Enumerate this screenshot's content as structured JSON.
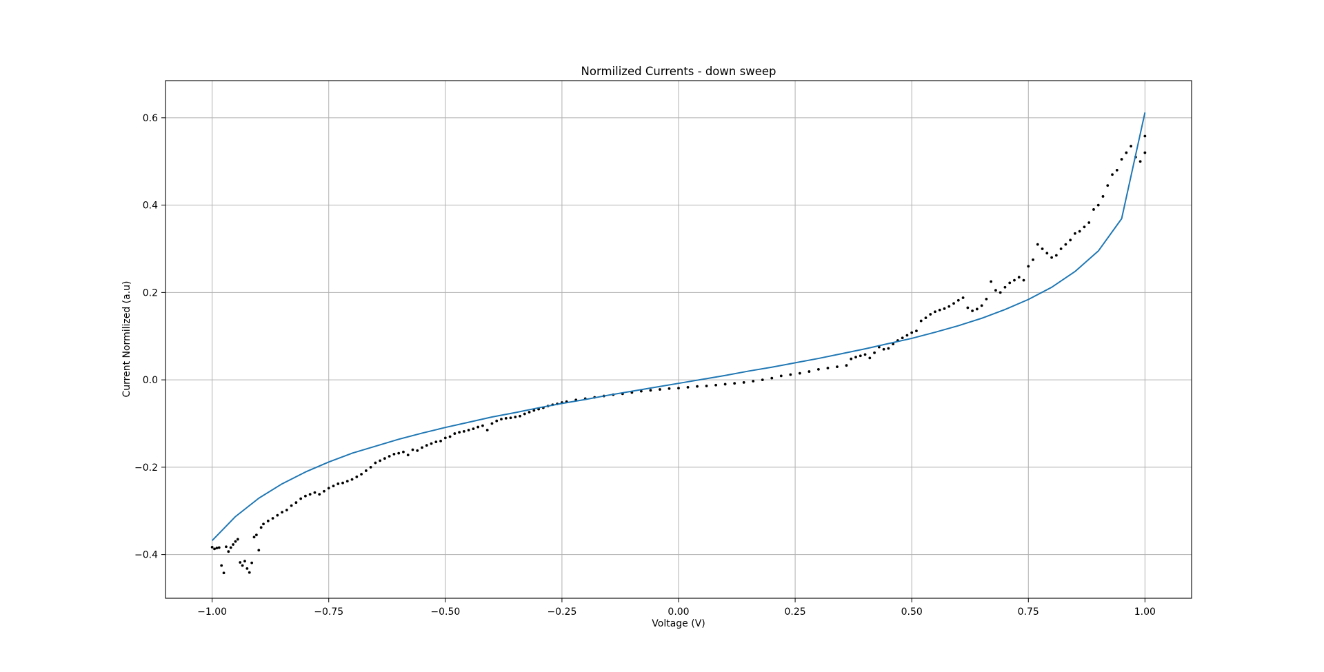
{
  "chart_data": {
    "type": "scatter",
    "title": "Normilized Currents - down sweep",
    "xlabel": "Voltage (V)",
    "ylabel": "Current Normilized (a.u)",
    "xlim": [
      -1.1,
      1.1
    ],
    "ylim": [
      -0.5,
      0.685
    ],
    "xticks": [
      -1.0,
      -0.75,
      -0.5,
      -0.25,
      0.0,
      0.25,
      0.5,
      0.75,
      1.0
    ],
    "xtick_labels": [
      "−1.00",
      "−0.75",
      "−0.50",
      "−0.25",
      "0.00",
      "0.25",
      "0.50",
      "0.75",
      "1.00"
    ],
    "yticks": [
      -0.4,
      -0.2,
      0.0,
      0.2,
      0.4,
      0.6
    ],
    "ytick_labels": [
      "−0.4",
      "−0.2",
      "0.0",
      "0.2",
      "0.4",
      "0.6"
    ],
    "grid": true,
    "series": [
      {
        "kind": "points",
        "color": "#000000",
        "points": [
          [
            -1.0,
            -0.383
          ],
          [
            -0.995,
            -0.387
          ],
          [
            -0.99,
            -0.385
          ],
          [
            -0.985,
            -0.384
          ],
          [
            -0.98,
            -0.425
          ],
          [
            -0.975,
            -0.442
          ],
          [
            -0.97,
            -0.382
          ],
          [
            -0.965,
            -0.393
          ],
          [
            -0.96,
            -0.384
          ],
          [
            -0.955,
            -0.377
          ],
          [
            -0.95,
            -0.37
          ],
          [
            -0.945,
            -0.365
          ],
          [
            -0.94,
            -0.418
          ],
          [
            -0.935,
            -0.425
          ],
          [
            -0.93,
            -0.415
          ],
          [
            -0.925,
            -0.432
          ],
          [
            -0.92,
            -0.441
          ],
          [
            -0.915,
            -0.419
          ],
          [
            -0.91,
            -0.36
          ],
          [
            -0.905,
            -0.355
          ],
          [
            -0.9,
            -0.39
          ],
          [
            -0.895,
            -0.338
          ],
          [
            -0.89,
            -0.33
          ],
          [
            -0.88,
            -0.323
          ],
          [
            -0.87,
            -0.317
          ],
          [
            -0.86,
            -0.31
          ],
          [
            -0.85,
            -0.303
          ],
          [
            -0.84,
            -0.298
          ],
          [
            -0.83,
            -0.288
          ],
          [
            -0.82,
            -0.281
          ],
          [
            -0.81,
            -0.272
          ],
          [
            -0.8,
            -0.266
          ],
          [
            -0.79,
            -0.262
          ],
          [
            -0.78,
            -0.258
          ],
          [
            -0.77,
            -0.262
          ],
          [
            -0.76,
            -0.255
          ],
          [
            -0.75,
            -0.248
          ],
          [
            -0.74,
            -0.243
          ],
          [
            -0.73,
            -0.238
          ],
          [
            -0.72,
            -0.236
          ],
          [
            -0.71,
            -0.232
          ],
          [
            -0.7,
            -0.228
          ],
          [
            -0.69,
            -0.222
          ],
          [
            -0.68,
            -0.216
          ],
          [
            -0.67,
            -0.208
          ],
          [
            -0.66,
            -0.2
          ],
          [
            -0.65,
            -0.19
          ],
          [
            -0.64,
            -0.185
          ],
          [
            -0.63,
            -0.18
          ],
          [
            -0.62,
            -0.175
          ],
          [
            -0.61,
            -0.17
          ],
          [
            -0.6,
            -0.168
          ],
          [
            -0.59,
            -0.165
          ],
          [
            -0.58,
            -0.172
          ],
          [
            -0.57,
            -0.16
          ],
          [
            -0.56,
            -0.162
          ],
          [
            -0.55,
            -0.155
          ],
          [
            -0.54,
            -0.15
          ],
          [
            -0.53,
            -0.146
          ],
          [
            -0.52,
            -0.142
          ],
          [
            -0.51,
            -0.14
          ],
          [
            -0.5,
            -0.133
          ],
          [
            -0.49,
            -0.13
          ],
          [
            -0.48,
            -0.123
          ],
          [
            -0.47,
            -0.12
          ],
          [
            -0.46,
            -0.118
          ],
          [
            -0.45,
            -0.115
          ],
          [
            -0.44,
            -0.112
          ],
          [
            -0.43,
            -0.108
          ],
          [
            -0.42,
            -0.105
          ],
          [
            -0.41,
            -0.115
          ],
          [
            -0.4,
            -0.1
          ],
          [
            -0.39,
            -0.094
          ],
          [
            -0.38,
            -0.09
          ],
          [
            -0.37,
            -0.088
          ],
          [
            -0.36,
            -0.087
          ],
          [
            -0.35,
            -0.085
          ],
          [
            -0.34,
            -0.083
          ],
          [
            -0.33,
            -0.078
          ],
          [
            -0.32,
            -0.074
          ],
          [
            -0.31,
            -0.07
          ],
          [
            -0.3,
            -0.067
          ],
          [
            -0.29,
            -0.064
          ],
          [
            -0.28,
            -0.06
          ],
          [
            -0.27,
            -0.057
          ],
          [
            -0.26,
            -0.055
          ],
          [
            -0.25,
            -0.052
          ],
          [
            -0.24,
            -0.05
          ],
          [
            -0.22,
            -0.046
          ],
          [
            -0.2,
            -0.043
          ],
          [
            -0.18,
            -0.04
          ],
          [
            -0.16,
            -0.037
          ],
          [
            -0.14,
            -0.034
          ],
          [
            -0.12,
            -0.032
          ],
          [
            -0.1,
            -0.029
          ],
          [
            -0.08,
            -0.026
          ],
          [
            -0.06,
            -0.024
          ],
          [
            -0.04,
            -0.022
          ],
          [
            -0.02,
            -0.02
          ],
          [
            0.0,
            -0.019
          ],
          [
            0.02,
            -0.017
          ],
          [
            0.04,
            -0.015
          ],
          [
            0.06,
            -0.014
          ],
          [
            0.08,
            -0.012
          ],
          [
            0.1,
            -0.01
          ],
          [
            0.12,
            -0.008
          ],
          [
            0.14,
            -0.006
          ],
          [
            0.16,
            -0.003
          ],
          [
            0.18,
            0.0
          ],
          [
            0.2,
            0.004
          ],
          [
            0.22,
            0.009
          ],
          [
            0.24,
            0.012
          ],
          [
            0.26,
            0.015
          ],
          [
            0.28,
            0.019
          ],
          [
            0.3,
            0.024
          ],
          [
            0.32,
            0.027
          ],
          [
            0.34,
            0.03
          ],
          [
            0.36,
            0.033
          ],
          [
            0.37,
            0.048
          ],
          [
            0.38,
            0.052
          ],
          [
            0.39,
            0.055
          ],
          [
            0.4,
            0.058
          ],
          [
            0.41,
            0.05
          ],
          [
            0.42,
            0.062
          ],
          [
            0.43,
            0.075
          ],
          [
            0.44,
            0.07
          ],
          [
            0.45,
            0.072
          ],
          [
            0.46,
            0.082
          ],
          [
            0.47,
            0.09
          ],
          [
            0.48,
            0.096
          ],
          [
            0.49,
            0.102
          ],
          [
            0.5,
            0.108
          ],
          [
            0.51,
            0.112
          ],
          [
            0.52,
            0.135
          ],
          [
            0.53,
            0.142
          ],
          [
            0.54,
            0.15
          ],
          [
            0.55,
            0.156
          ],
          [
            0.56,
            0.16
          ],
          [
            0.57,
            0.163
          ],
          [
            0.58,
            0.168
          ],
          [
            0.59,
            0.175
          ],
          [
            0.6,
            0.182
          ],
          [
            0.61,
            0.188
          ],
          [
            0.62,
            0.165
          ],
          [
            0.63,
            0.158
          ],
          [
            0.64,
            0.162
          ],
          [
            0.65,
            0.17
          ],
          [
            0.66,
            0.185
          ],
          [
            0.67,
            0.225
          ],
          [
            0.68,
            0.205
          ],
          [
            0.69,
            0.2
          ],
          [
            0.7,
            0.212
          ],
          [
            0.71,
            0.222
          ],
          [
            0.72,
            0.228
          ],
          [
            0.73,
            0.235
          ],
          [
            0.74,
            0.228
          ],
          [
            0.75,
            0.26
          ],
          [
            0.76,
            0.275
          ],
          [
            0.77,
            0.31
          ],
          [
            0.78,
            0.3
          ],
          [
            0.79,
            0.29
          ],
          [
            0.8,
            0.28
          ],
          [
            0.81,
            0.285
          ],
          [
            0.82,
            0.3
          ],
          [
            0.83,
            0.31
          ],
          [
            0.84,
            0.32
          ],
          [
            0.85,
            0.335
          ],
          [
            0.86,
            0.34
          ],
          [
            0.87,
            0.35
          ],
          [
            0.88,
            0.36
          ],
          [
            0.89,
            0.39
          ],
          [
            0.9,
            0.4
          ],
          [
            0.91,
            0.42
          ],
          [
            0.92,
            0.445
          ],
          [
            0.93,
            0.47
          ],
          [
            0.94,
            0.48
          ],
          [
            0.95,
            0.505
          ],
          [
            0.96,
            0.52
          ],
          [
            0.97,
            0.535
          ],
          [
            0.98,
            0.51
          ],
          [
            0.99,
            0.5
          ],
          [
            1.0,
            0.52
          ],
          [
            1.0,
            0.558
          ]
        ]
      },
      {
        "kind": "line",
        "color": "#1f77b4",
        "x": [
          -1.0,
          -0.95,
          -0.9,
          -0.85,
          -0.8,
          -0.75,
          -0.7,
          -0.65,
          -0.6,
          -0.55,
          -0.5,
          -0.45,
          -0.4,
          -0.35,
          -0.3,
          -0.25,
          -0.2,
          -0.15,
          -0.1,
          -0.05,
          0.0,
          0.05,
          0.1,
          0.15,
          0.2,
          0.25,
          0.3,
          0.35,
          0.4,
          0.45,
          0.5,
          0.55,
          0.6,
          0.65,
          0.7,
          0.75,
          0.8,
          0.85,
          0.9,
          0.95,
          1.0
        ],
        "values": [
          -0.368,
          -0.313,
          -0.271,
          -0.238,
          -0.211,
          -0.188,
          -0.168,
          -0.152,
          -0.136,
          -0.122,
          -0.109,
          -0.097,
          -0.085,
          -0.075,
          -0.064,
          -0.054,
          -0.045,
          -0.035,
          -0.026,
          -0.017,
          -0.008,
          0.001,
          0.01,
          0.02,
          0.029,
          0.039,
          0.049,
          0.06,
          0.071,
          0.083,
          0.095,
          0.109,
          0.124,
          0.141,
          0.161,
          0.184,
          0.212,
          0.248,
          0.295,
          0.369,
          0.612
        ]
      }
    ]
  }
}
